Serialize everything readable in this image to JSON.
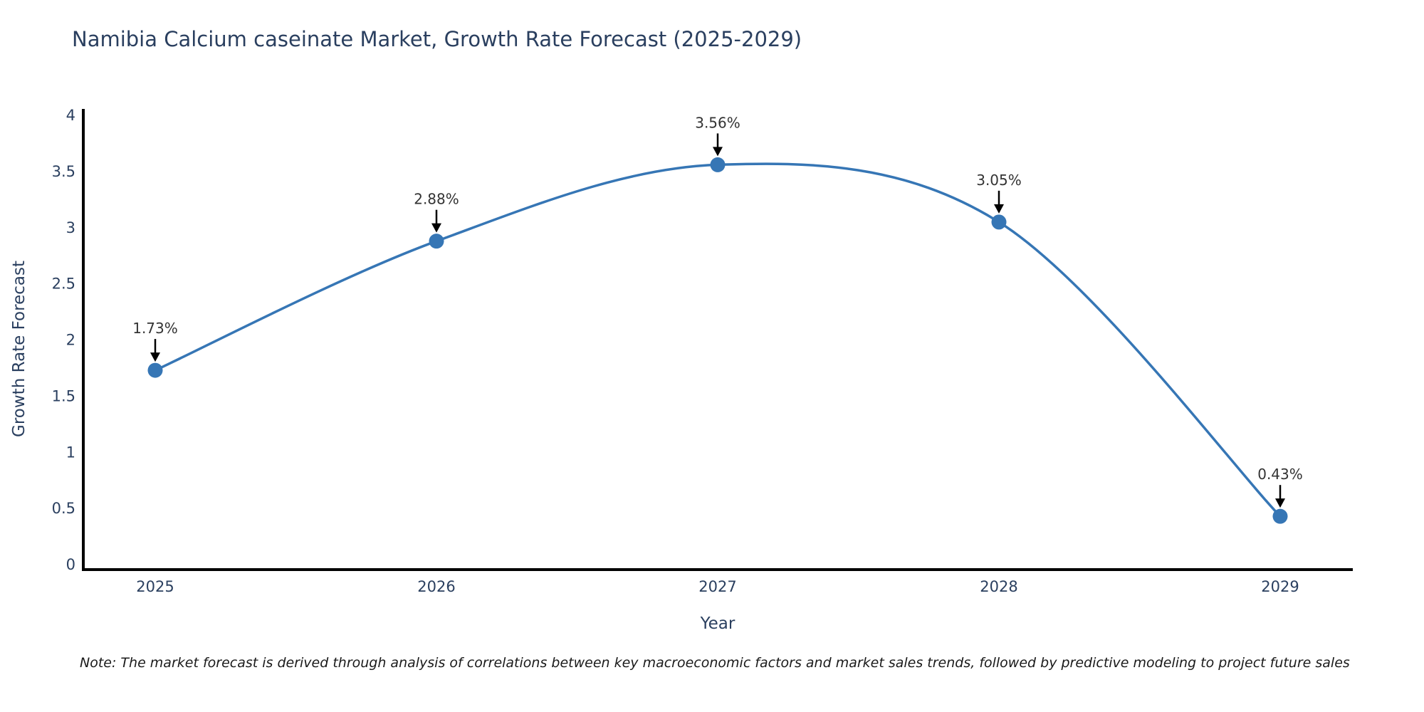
{
  "title": "Namibia Calcium caseinate Market, Growth Rate Forecast (2025-2029)",
  "note": "Note: The market forecast is derived through analysis of correlations between key macroeconomic factors and market sales trends, followed by predictive modeling to project future sales",
  "chart_data": {
    "type": "line",
    "title": "Namibia Calcium caseinate Market, Growth Rate Forecast (2025-2029)",
    "x": [
      2025,
      2026,
      2027,
      2028,
      2029
    ],
    "x_tick_labels": [
      "2025",
      "2026",
      "2027",
      "2028",
      "2029"
    ],
    "values": [
      1.73,
      2.88,
      3.56,
      3.05,
      0.43
    ],
    "point_labels": [
      "1.73%",
      "2.88%",
      "3.56%",
      "3.05%",
      "0.43%"
    ],
    "xlabel": "Year",
    "ylabel": "Growth Rate Forecast",
    "ylim": [
      0,
      4
    ],
    "yticks": [
      0,
      0.5,
      1,
      1.5,
      2,
      2.5,
      3,
      3.5,
      4
    ],
    "ytick_labels": [
      "0",
      "0.5",
      "1",
      "1.5",
      "2",
      "2.5",
      "3",
      "3.5",
      "4"
    ],
    "line_shape": "spline",
    "grid": false,
    "legend": "none",
    "colors": {
      "line": "#3676b5",
      "marker": "#3676b5",
      "axis": "#000000",
      "tick_text": "#2a3f5f",
      "title_text": "#2a3f5f",
      "annotation_text": "#333333",
      "arrow": "#000000",
      "background": "#ffffff"
    }
  }
}
